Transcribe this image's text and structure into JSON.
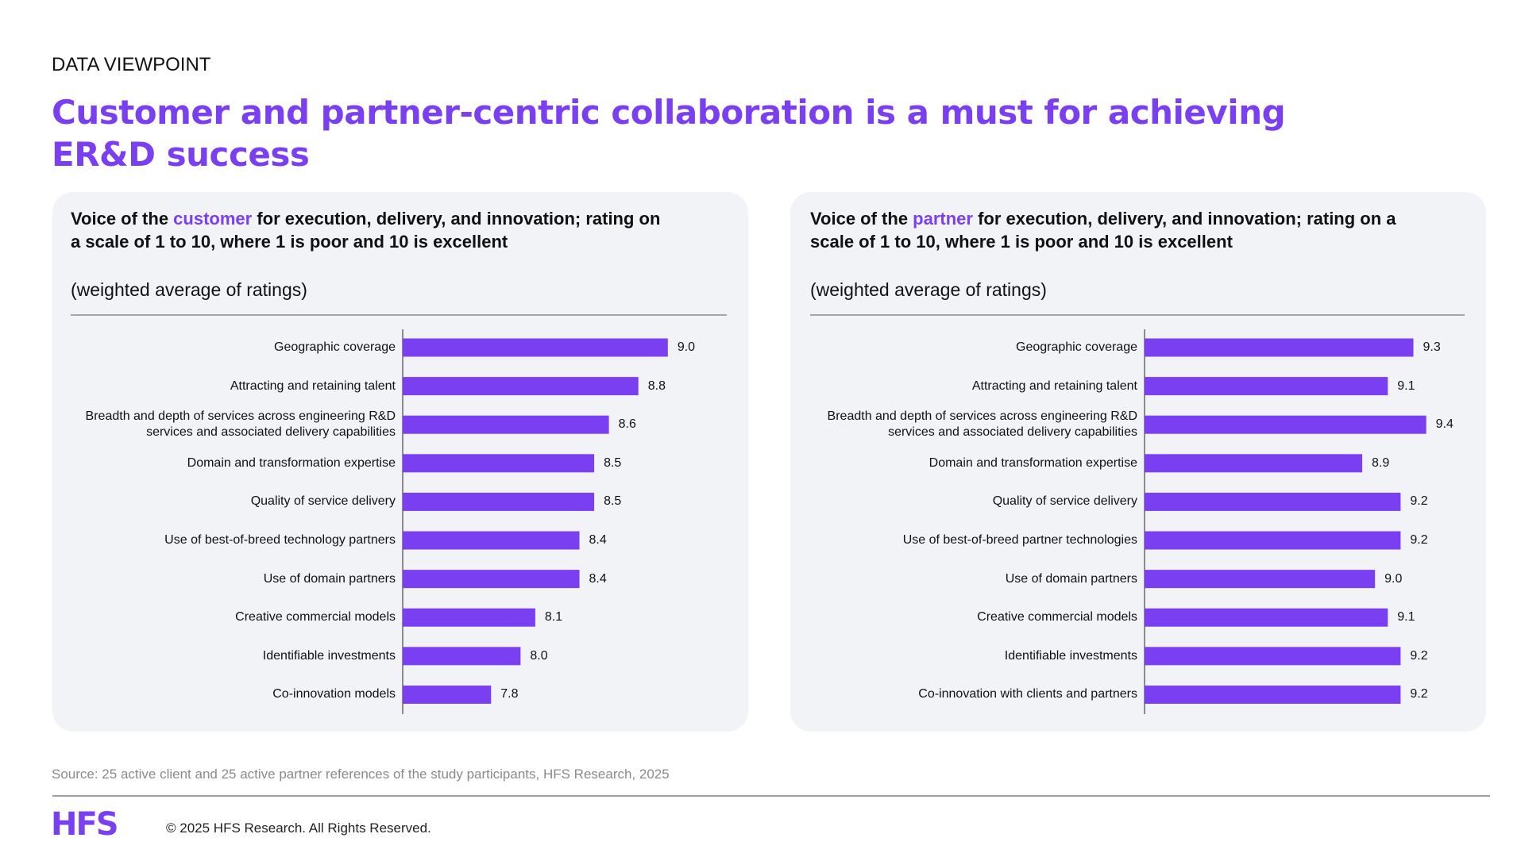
{
  "header": {
    "eyebrow": "DATA VIEWPOINT",
    "title": "Customer and partner-centric collaboration is a must for achieving ER&D success"
  },
  "chart_data": [
    {
      "type": "bar",
      "orientation": "horizontal",
      "title": [
        "Voice of the ",
        "customer",
        " for execution, delivery, and innovation; rating on a scale of 1 to 10, where 1 is poor and 10 is excellent"
      ],
      "subtitle": "(weighted average of ratings)",
      "categories": [
        "Geographic coverage",
        "Attracting and retaining talent",
        "Breadth and depth of services across engineering R&D services and associated delivery capabilities",
        "Domain and transformation expertise",
        "Quality of service delivery",
        "Use of best-of-breed technology partners",
        "Use of domain partners",
        "Creative commercial models",
        "Identifiable investments",
        "Co-innovation models"
      ],
      "values": [
        9.0,
        8.8,
        8.6,
        8.5,
        8.5,
        8.4,
        8.4,
        8.1,
        8.0,
        7.8
      ],
      "value_labels": [
        "9.0",
        "8.8",
        "8.6",
        "8.5",
        "8.5",
        "8.4",
        "8.4",
        "8.1",
        "8.0",
        "7.8"
      ],
      "color": "#7b3ff2",
      "xlim": [
        7.2,
        9.4
      ]
    },
    {
      "type": "bar",
      "orientation": "horizontal",
      "title": [
        "Voice of the ",
        "partner",
        " for execution, delivery, and innovation; rating on a scale of 1 to 10, where 1 is poor and 10 is excellent"
      ],
      "subtitle": "(weighted average of ratings)",
      "categories": [
        "Geographic coverage",
        "Attracting and retaining talent",
        "Breadth and depth of services across engineering R&D services and associated delivery capabilities",
        "Domain and transformation expertise",
        "Quality of service delivery",
        "Use of best-of-breed partner technologies",
        "Use of domain partners",
        "Creative commercial models",
        "Identifiable investments",
        "Co-innovation with clients and partners"
      ],
      "values": [
        9.3,
        9.1,
        9.4,
        8.9,
        9.2,
        9.2,
        9.0,
        9.1,
        9.2,
        9.2
      ],
      "value_labels": [
        "9.3",
        "9.1",
        "9.4",
        "8.9",
        "9.2",
        "9.2",
        "9.0",
        "9.1",
        "9.2",
        "9.2"
      ],
      "color": "#7b3ff2",
      "xlim": [
        7.2,
        9.7
      ]
    }
  ],
  "footer": {
    "source": "Source: 25 active client and 25 active partner references of the study participants, HFS Research, 2025",
    "logo": "HFS",
    "copyright": "© 2025 HFS Research. All Rights Reserved."
  }
}
